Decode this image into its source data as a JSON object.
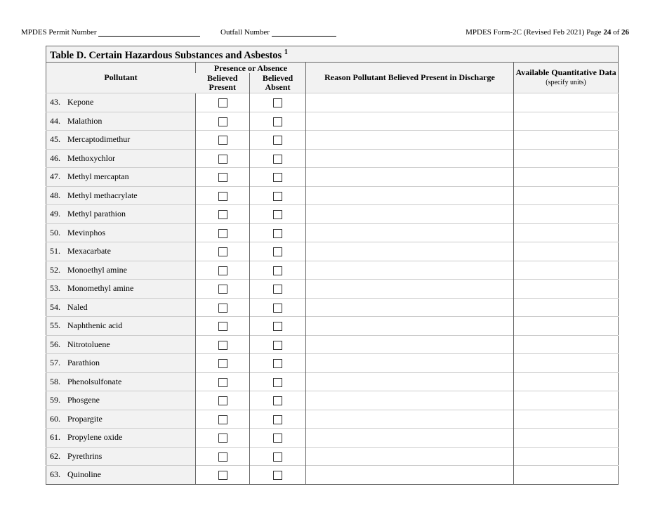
{
  "header": {
    "permit_label": "MPDES Permit Number",
    "outfall_label": "Outfall Number",
    "form_label": "MPDES Form-2C (Revised Feb 2021) Page",
    "page": "24",
    "of": "of",
    "total": "26"
  },
  "table": {
    "title": "Table D. Certain Hazardous Substances and Asbestos",
    "title_sup": "1",
    "col_pollutant": "Pollutant",
    "col_presence": "Presence or Absence",
    "col_present": "Believed Present",
    "col_absent": "Believed Absent",
    "col_reason": "Reason Pollutant Believed Present in Discharge",
    "col_data": "Available Quantitative Data",
    "col_data_units": "(specify units)",
    "rows": [
      {
        "num": "43.",
        "name": "Kepone"
      },
      {
        "num": "44.",
        "name": "Malathion"
      },
      {
        "num": "45.",
        "name": "Mercaptodimethur"
      },
      {
        "num": "46.",
        "name": "Methoxychlor"
      },
      {
        "num": "47.",
        "name": "Methyl mercaptan"
      },
      {
        "num": "48.",
        "name": "Methyl methacrylate"
      },
      {
        "num": "49.",
        "name": "Methyl parathion"
      },
      {
        "num": "50.",
        "name": "Mevinphos"
      },
      {
        "num": "51.",
        "name": "Mexacarbate"
      },
      {
        "num": "52.",
        "name": "Monoethyl amine"
      },
      {
        "num": "53.",
        "name": "Monomethyl amine"
      },
      {
        "num": "54.",
        "name": "Naled"
      },
      {
        "num": "55.",
        "name": "Naphthenic acid"
      },
      {
        "num": "56.",
        "name": "Nitrotoluene"
      },
      {
        "num": "57.",
        "name": "Parathion"
      },
      {
        "num": "58.",
        "name": "Phenolsulfonate"
      },
      {
        "num": "59.",
        "name": "Phosgene"
      },
      {
        "num": "60.",
        "name": "Propargite"
      },
      {
        "num": "61.",
        "name": "Propylene oxide"
      },
      {
        "num": "62.",
        "name": "Pyrethrins"
      },
      {
        "num": "63.",
        "name": "Quinoline"
      }
    ]
  }
}
